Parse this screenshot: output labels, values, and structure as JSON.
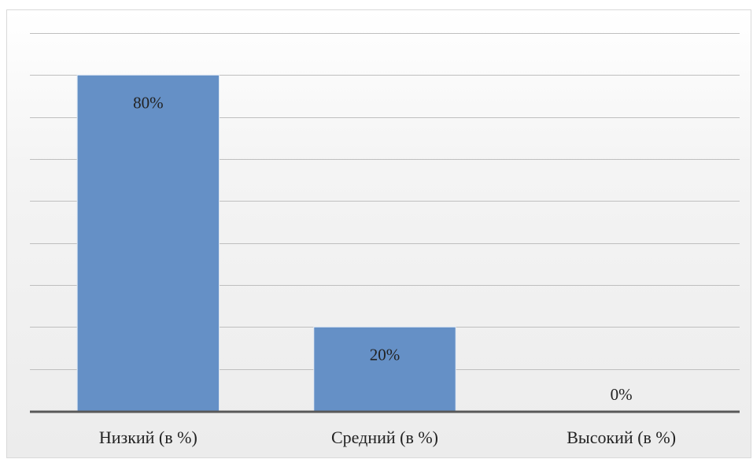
{
  "chart_data": {
    "type": "bar",
    "title": "",
    "xlabel": "",
    "ylabel": "",
    "categories": [
      "Низкий (в %)",
      "Средний (в %)",
      "Высокий (в %)"
    ],
    "values": [
      80,
      20,
      0
    ],
    "data_labels": [
      "80%",
      "20%",
      "0%"
    ],
    "ylim": [
      0,
      90
    ],
    "ytick_step": 10,
    "grid": true,
    "legend": "none",
    "bar_color": "#6590c6",
    "bar_edge_color": "#dfe8f3",
    "grid_color": "#bfbfbf",
    "axis_color": "#595959"
  }
}
